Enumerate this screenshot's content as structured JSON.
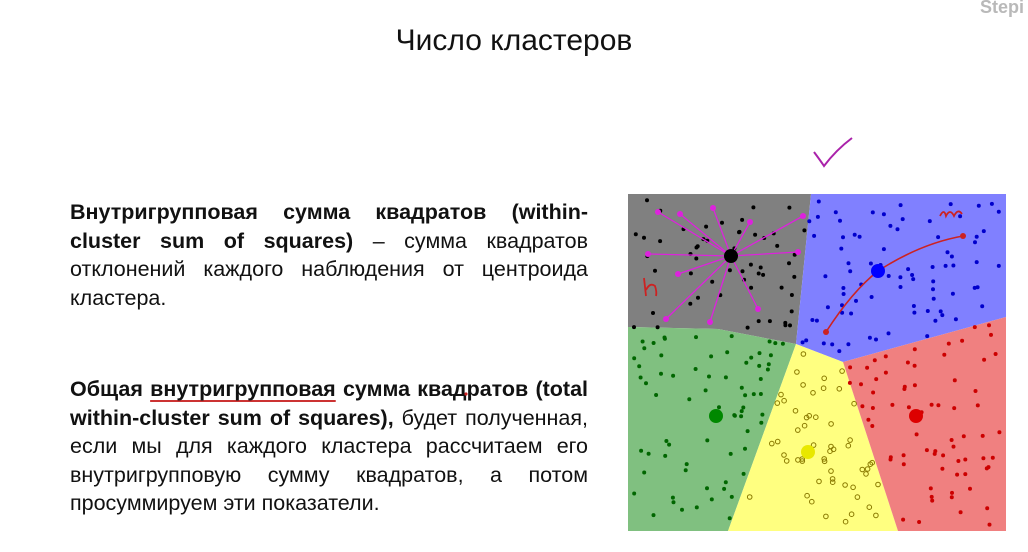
{
  "brand": "Stepi",
  "title": "Число кластеров",
  "paragraph1": {
    "bold": "Внутригрупповая сумма квадратов (within-cluster sum of squares)",
    "rest": " – сумма квадратов отклонений каждого наблюдения от  центроида кластера."
  },
  "paragraph2": {
    "bold_start": "Общая ",
    "bold_underlined": "внутригрупповая",
    "bold_end": " сумма квадратов (total within-cluster sum of squares),",
    "rest": " будет полученная, если мы для каждого кластера рассчитаем его внутригрупповую сумму квадратов, а потом просуммируем эти показатели."
  },
  "figure": {
    "regions": [
      {
        "name": "gray",
        "color": "#808080"
      },
      {
        "name": "blue",
        "color": "#8080ff"
      },
      {
        "name": "green",
        "color": "#80c080"
      },
      {
        "name": "yellow",
        "color": "#ffff80"
      },
      {
        "name": "red",
        "color": "#f08080"
      }
    ],
    "annotations": {
      "left_mark": "n",
      "right_mark": "m",
      "ink_color": "#cc2222",
      "magenta": "#dd22dd"
    }
  }
}
